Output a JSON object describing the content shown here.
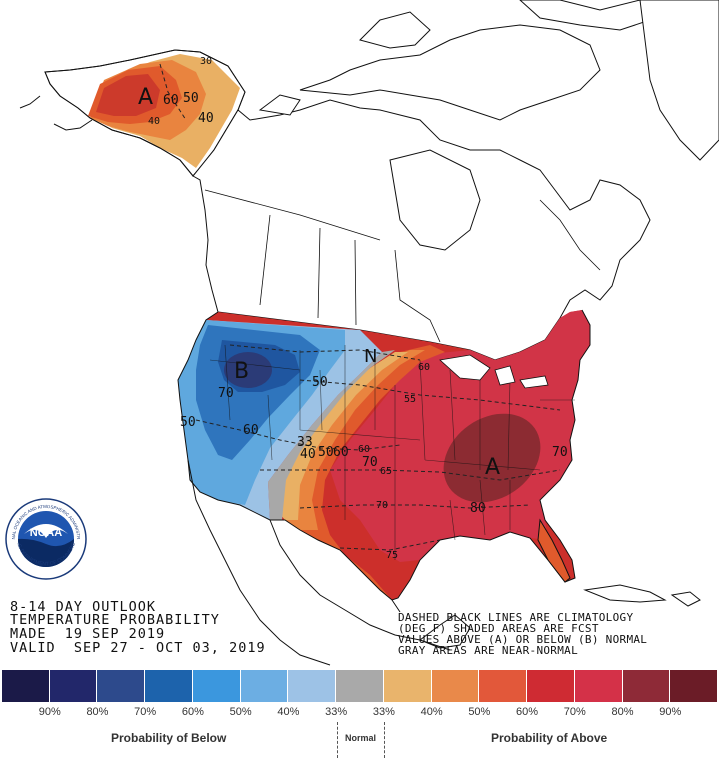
{
  "map": {
    "alaska_letter": "A",
    "west_letter": "B",
    "east_letter": "A",
    "normal_letter": "N",
    "contours": {
      "ak_60": "60",
      "ak_50": "50",
      "ak_40a": "40",
      "ak_40b": "40",
      "ak_30": "30",
      "w_70": "70",
      "w_60": "60",
      "w_50a": "50",
      "w_50b": "50",
      "c_33": "33",
      "c_40": "40",
      "c_50": "50",
      "c_60a": "60",
      "c_60b": "60",
      "e_60": "60",
      "e_55": "55",
      "e_65": "65",
      "e_70a": "70",
      "e_70b": "70",
      "e_75": "75",
      "e_80": "80",
      "e_70c": "70"
    },
    "colors": {
      "above_40": "#e9b064",
      "above_50": "#e9843f",
      "above_60": "#e05a2c",
      "above_70": "#cc2f2b",
      "above_80": "#d13447",
      "above_90": "#8c2b32",
      "below_40": "#9cc2e5",
      "below_50": "#5fa8de",
      "below_60": "#2f75bd",
      "below_70": "#1f56a0",
      "below_80": "#2b3b77",
      "near_normal": "#a8a8a8"
    }
  },
  "title": {
    "line1": "8-14 DAY OUTLOOK",
    "line2": "TEMPERATURE PROBABILITY",
    "line3": "MADE  19 SEP 2019",
    "line4": "VALID  SEP 27 - OCT 03, 2019"
  },
  "note": {
    "line1": "DASHED BLACK LINES ARE CLIMATOLOGY",
    "line2": "(DEG F) SHADED AREAS ARE FCST",
    "line3": "VALUES ABOVE (A) OR BELOW (B) NORMAL",
    "line4": "GRAY AREAS ARE NEAR-NORMAL"
  },
  "logo": {
    "text": "NOAA",
    "ring_top": "NATIONAL OCEANIC AND ATMOSPHERIC ADMINISTRATION",
    "ring_bottom": "U.S. DEPARTMENT OF COMMERCE"
  },
  "legend": {
    "colors": [
      "#1b1a48",
      "#22276a",
      "#2d4a8c",
      "#1d63ac",
      "#3b97de",
      "#6caee3",
      "#9dc2e6",
      "#a9a9a9",
      "#e9b46c",
      "#e9894a",
      "#e2583a",
      "#cf2b33",
      "#d43148",
      "#8e2a37",
      "#6b1c27"
    ],
    "percents": [
      "90%",
      "80%",
      "70%",
      "60%",
      "50%",
      "40%",
      "33%",
      "33%",
      "40%",
      "50%",
      "60%",
      "70%",
      "80%",
      "90%"
    ],
    "below_caption": "Probability of Below",
    "normal_caption": "Normal",
    "above_caption": "Probability of Above"
  }
}
